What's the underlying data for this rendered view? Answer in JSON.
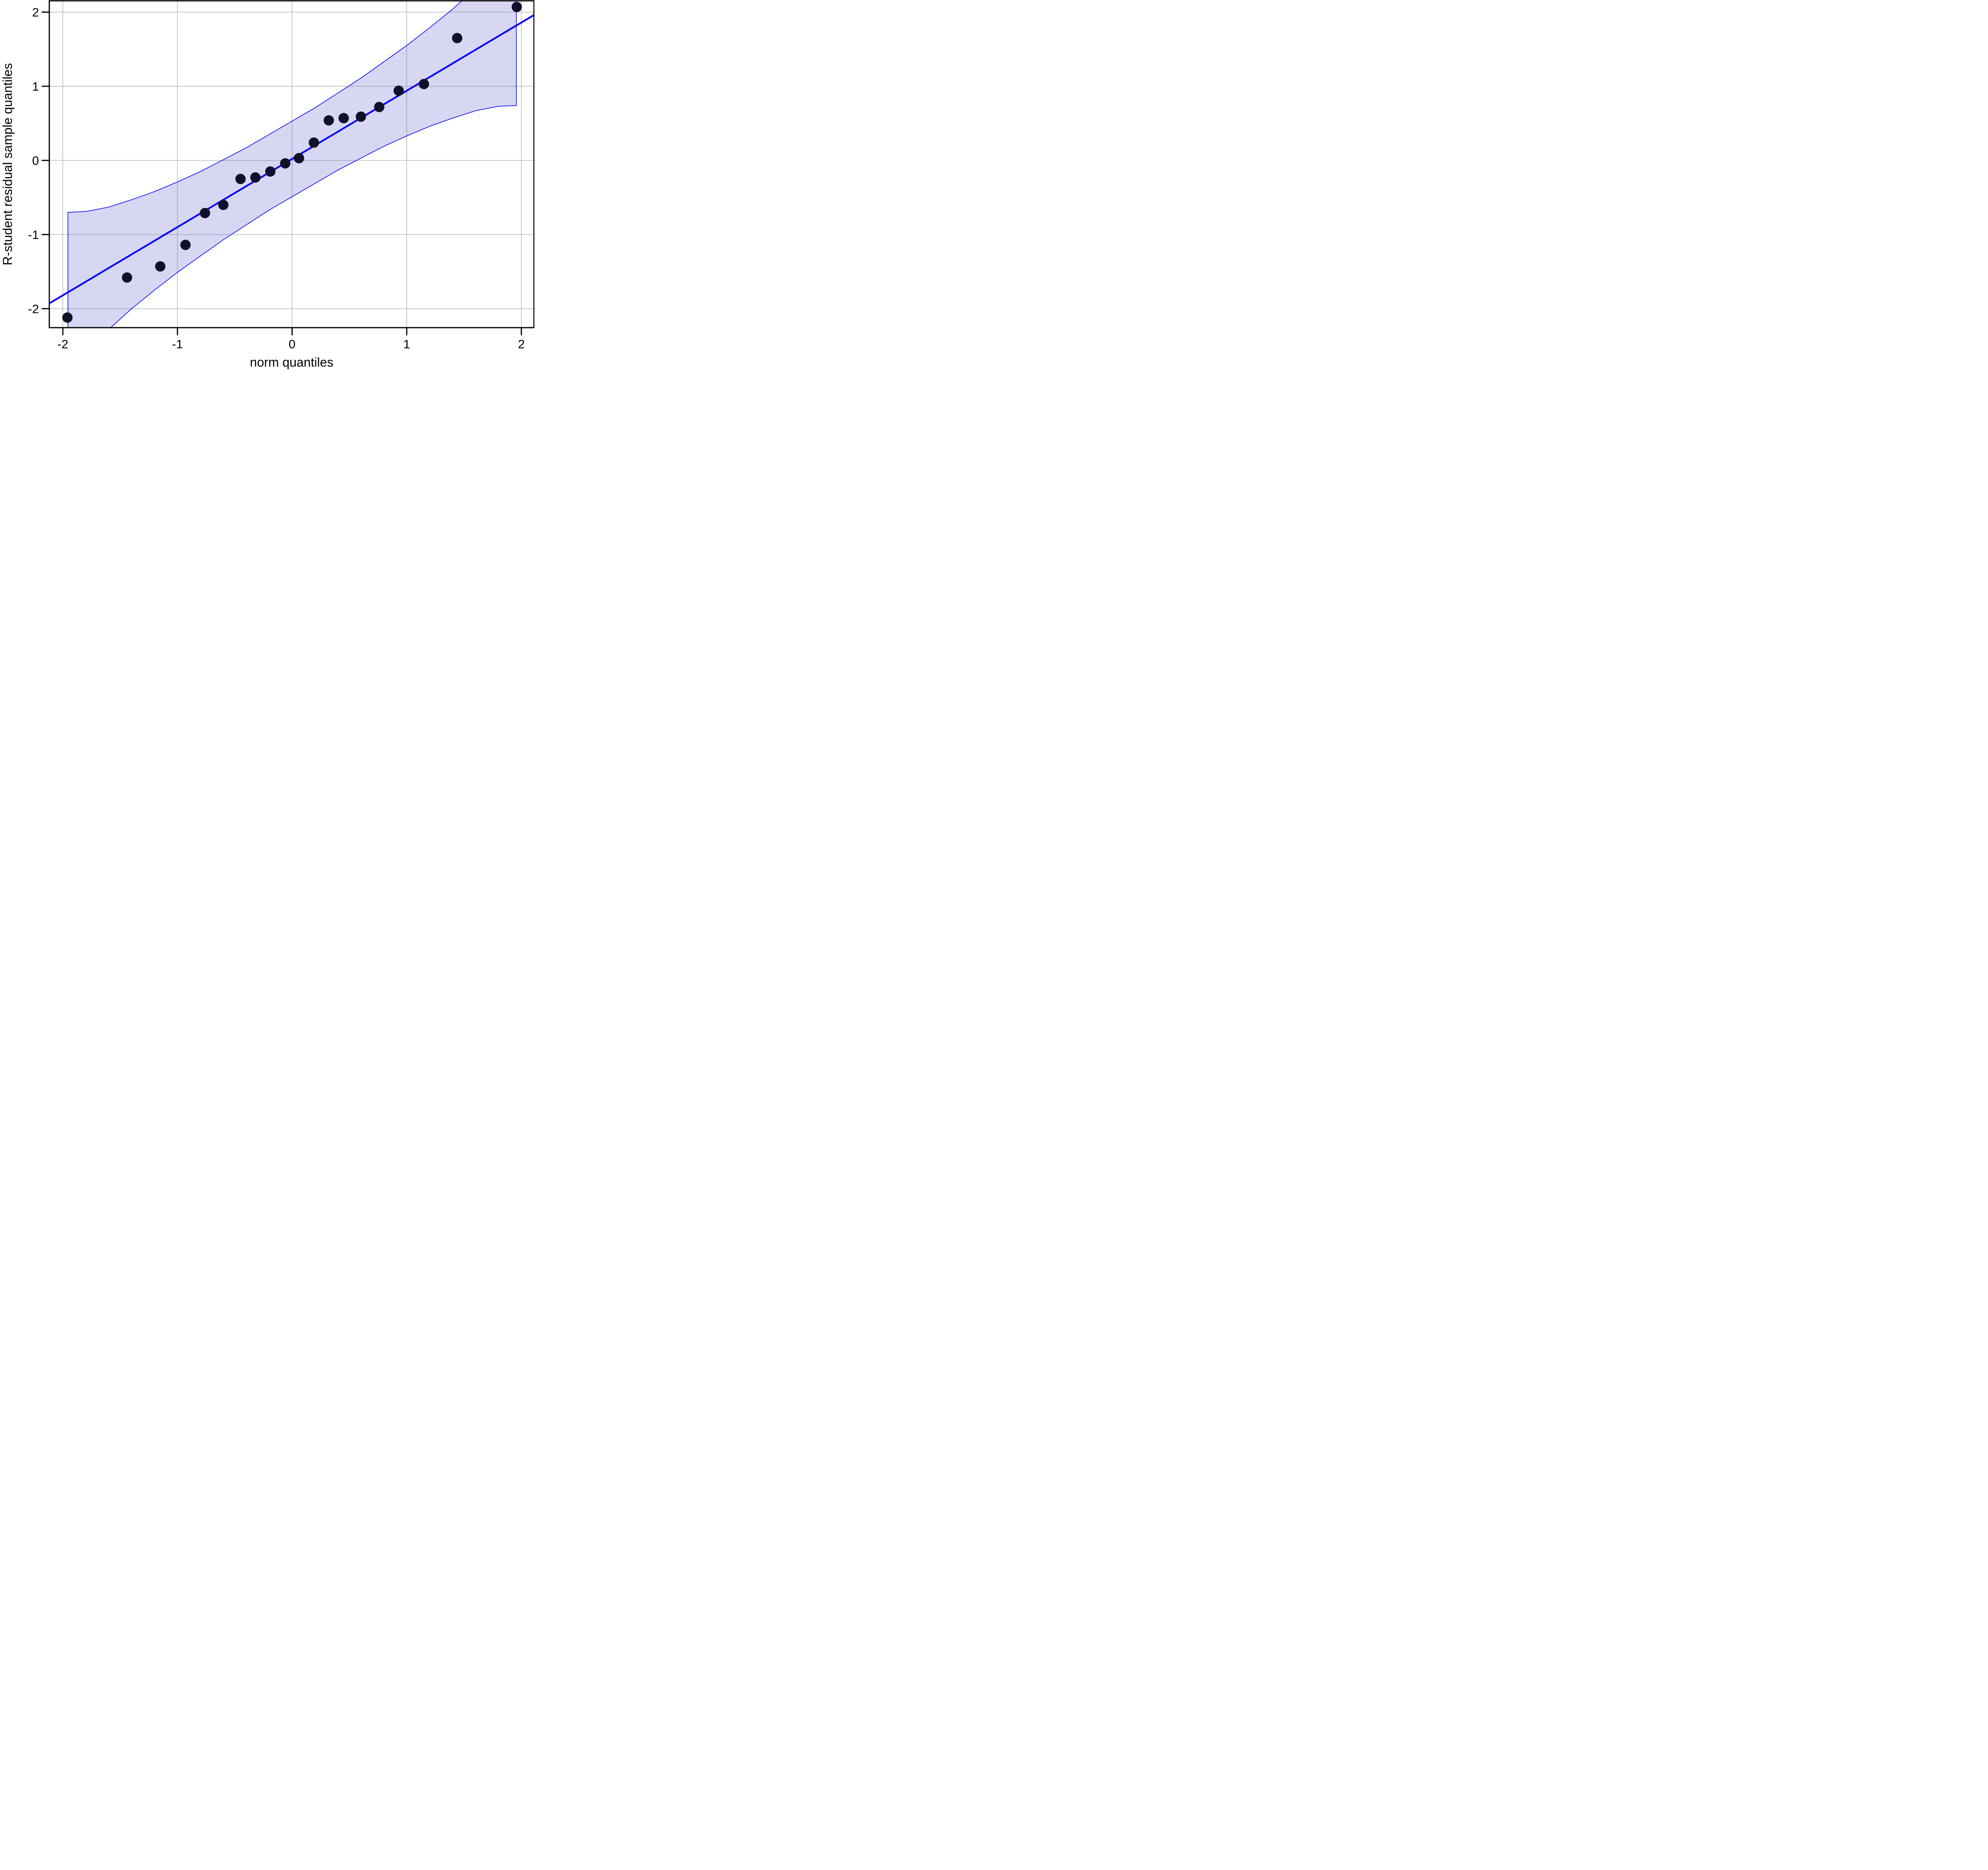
{
  "chart_data": {
    "type": "scatter",
    "subtype": "qq-plot-with-confidence-envelope",
    "title": "",
    "xlabel": "norm quantiles",
    "ylabel": "R-student residual sample quantiles",
    "xlim": [
      -2.118,
      2.11
    ],
    "ylim": [
      -2.256,
      2.153
    ],
    "x_ticks": [
      -2,
      -1,
      0,
      1,
      2
    ],
    "x_tick_labels": [
      "-2",
      "-1",
      "0",
      "1",
      "2"
    ],
    "y_ticks": [
      -2,
      -1,
      0,
      1,
      2
    ],
    "y_tick_labels": [
      "-2",
      "-1",
      "0",
      "1",
      "2"
    ],
    "grid": true,
    "n_points": 20,
    "points": {
      "x": [
        -1.96,
        -1.44,
        -1.15,
        -0.93,
        -0.76,
        -0.6,
        -0.45,
        -0.32,
        -0.19,
        -0.06,
        0.06,
        0.19,
        0.32,
        0.45,
        0.6,
        0.76,
        0.93,
        1.15,
        1.44,
        1.96
      ],
      "y": [
        -2.12,
        -1.58,
        -1.43,
        -1.14,
        -0.71,
        -0.6,
        -0.25,
        -0.23,
        -0.15,
        -0.04,
        0.03,
        0.24,
        0.54,
        0.57,
        0.59,
        0.72,
        0.94,
        1.03,
        1.65,
        2.07
      ]
    },
    "reference_line": {
      "intercept": 0.02,
      "slope": 0.92
    },
    "confidence_envelope": {
      "x_clip": [
        -1.956,
        1.956
      ],
      "x": [
        -1.956,
        -1.8,
        -1.6,
        -1.4,
        -1.2,
        -1.0,
        -0.8,
        -0.6,
        -0.4,
        -0.2,
        0.0,
        0.2,
        0.4,
        0.6,
        0.8,
        1.0,
        1.2,
        1.4,
        1.6,
        1.8,
        1.956
      ],
      "upper": [
        -0.7,
        -0.69,
        -0.63,
        -0.53,
        -0.42,
        -0.29,
        -0.15,
        0.01,
        0.17,
        0.35,
        0.53,
        0.71,
        0.91,
        1.11,
        1.33,
        1.55,
        1.79,
        2.04,
        2.32,
        2.63,
        2.9
      ],
      "lower": [
        -2.86,
        -2.59,
        -2.28,
        -2.0,
        -1.75,
        -1.51,
        -1.29,
        -1.07,
        -0.87,
        -0.67,
        -0.49,
        -0.31,
        -0.13,
        0.03,
        0.19,
        0.33,
        0.46,
        0.57,
        0.67,
        0.73,
        0.74
      ]
    },
    "colors": {
      "reference_line": "#0000ff",
      "envelope_border": "#0000ff",
      "envelope_fill": "rgba(100,100,210,0.26)",
      "point": "#10102a",
      "gridline": "#c3c3c3",
      "axis": "#000000",
      "background": "#ffffff",
      "text": "#000000"
    }
  }
}
